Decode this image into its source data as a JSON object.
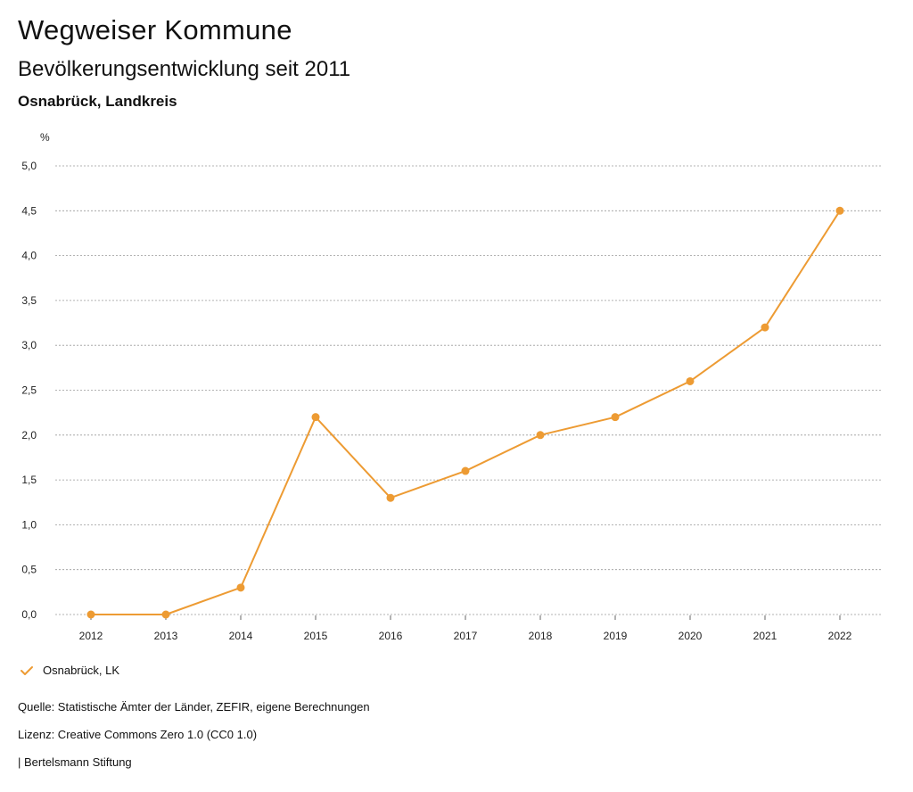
{
  "header": {
    "title": "Wegweiser Kommune",
    "subtitle": "Bevölkerungsentwicklung seit 2011",
    "region": "Osnabrück, Landkreis"
  },
  "colors": {
    "series": "#ED9B33",
    "grid": "#9a9a9a"
  },
  "chart_data": {
    "type": "line",
    "title": "Bevölkerungsentwicklung seit 2011",
    "ylabel": "%",
    "xlabel": "",
    "x": [
      "2012",
      "2013",
      "2014",
      "2015",
      "2016",
      "2017",
      "2018",
      "2019",
      "2020",
      "2021",
      "2022"
    ],
    "series": [
      {
        "name": "Osnabrück, LK",
        "values": [
          0.0,
          0.0,
          0.3,
          2.2,
          1.3,
          1.6,
          2.0,
          2.2,
          2.6,
          3.2,
          4.5
        ]
      }
    ],
    "ylim": [
      0,
      5
    ],
    "yticks": [
      "0,0",
      "0,5",
      "1,0",
      "1,5",
      "2,0",
      "2,5",
      "3,0",
      "3,5",
      "4,0",
      "4,5",
      "5,0"
    ],
    "grid": true,
    "legend": "bottom-left"
  },
  "legend": {
    "label": "Osnabrück, LK"
  },
  "footer": {
    "source": "Quelle: Statistische Ämter der Länder, ZEFIR, eigene Berechnungen",
    "license": "Lizenz: Creative Commons Zero 1.0 (CC0 1.0)",
    "publisher": "| Bertelsmann Stiftung"
  }
}
